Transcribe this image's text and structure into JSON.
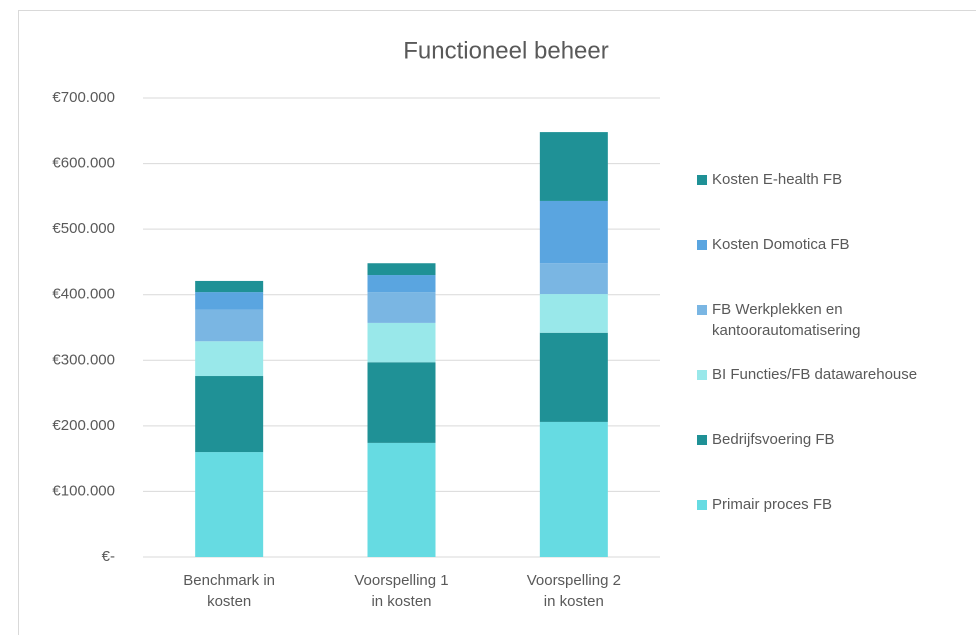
{
  "chart_data": {
    "type": "bar",
    "stacked": true,
    "title": "Functioneel beheer",
    "categories": [
      "Benchmark in kosten",
      "Voorspelling 1 in kosten",
      "Voorspelling 2 in kosten"
    ],
    "series": [
      {
        "name": "Primair proces FB",
        "color": "#66dbe2",
        "values": [
          160000,
          174000,
          206000
        ]
      },
      {
        "name": "Bedrijfsvoering FB",
        "color": "#1f9196",
        "values": [
          116000,
          123000,
          136000
        ]
      },
      {
        "name": "BI Functies/FB datawarehouse",
        "color": "#99e8ea",
        "values": [
          53000,
          60000,
          59000
        ]
      },
      {
        "name": "FB Werkplekken en kantoorautomatisering",
        "color": "#7ab6e3",
        "values": [
          48000,
          47000,
          47000
        ]
      },
      {
        "name": "Kosten Domotica FB",
        "color": "#5aa5e0",
        "values": [
          27000,
          26000,
          95000
        ]
      },
      {
        "name": "Kosten E-health FB",
        "color": "#1f9196",
        "values": [
          17000,
          18000,
          105000
        ]
      }
    ],
    "ylim": [
      0,
      700000
    ],
    "yticks": [
      {
        "value": 0,
        "label": "€-"
      },
      {
        "value": 100000,
        "label": "€100.000"
      },
      {
        "value": 200000,
        "label": "€200.000"
      },
      {
        "value": 300000,
        "label": "€300.000"
      },
      {
        "value": 400000,
        "label": "€400.000"
      },
      {
        "value": 500000,
        "label": "€500.000"
      },
      {
        "value": 600000,
        "label": "€600.000"
      },
      {
        "value": 700000,
        "label": "€700.000"
      }
    ],
    "grid": true,
    "legend": "right"
  }
}
